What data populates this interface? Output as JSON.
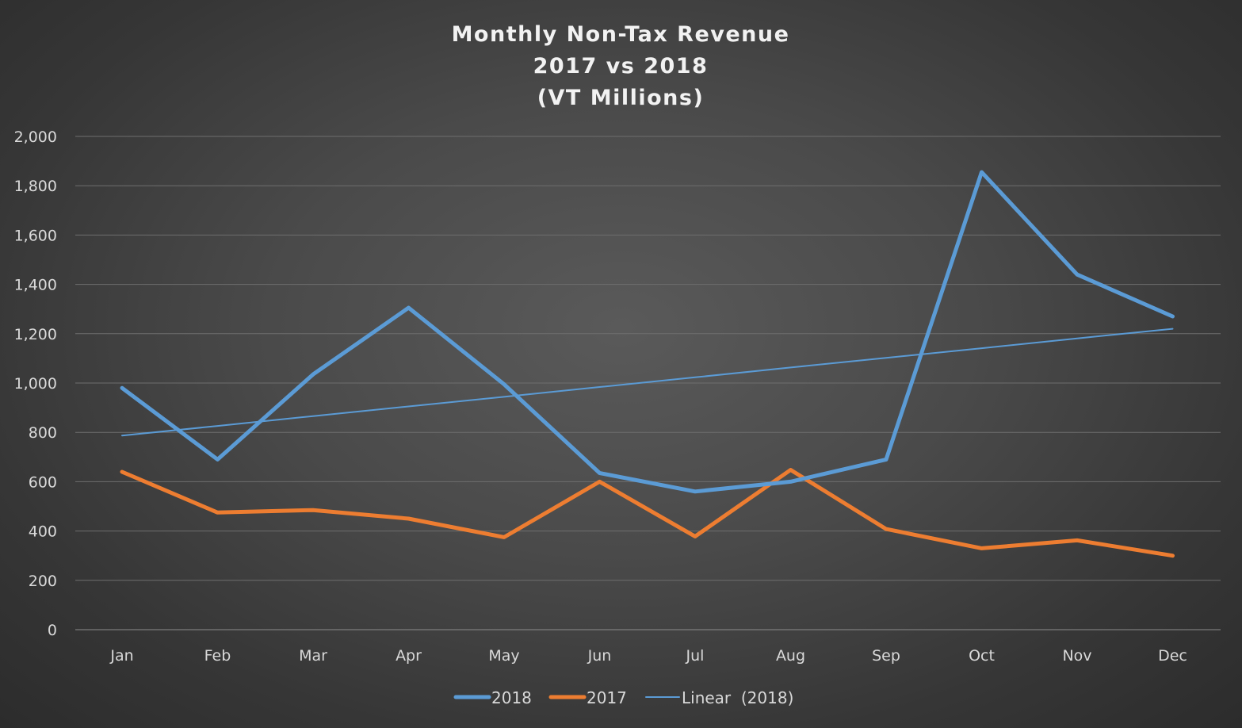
{
  "title": {
    "line1": "Monthly Non-Tax Revenue",
    "line2": "2017 vs 2018",
    "line3": "(VT Millions)"
  },
  "chart_data": {
    "type": "line",
    "title": "Monthly Non-Tax Revenue 2017 vs 2018 (VT Millions)",
    "categories": [
      "Jan",
      "Feb",
      "Mar",
      "Apr",
      "May",
      "Jun",
      "Jul",
      "Aug",
      "Sep",
      "Oct",
      "Nov",
      "Dec"
    ],
    "ylim": [
      0,
      2000
    ],
    "yticks": [
      0,
      200,
      400,
      600,
      800,
      1000,
      1200,
      1400,
      1600,
      1800,
      2000
    ],
    "ytick_labels": [
      "0",
      "200",
      "400",
      "600",
      "800",
      "1,000",
      "1,200",
      "1,400",
      "1,600",
      "1,800",
      "2,000"
    ],
    "grid": "horizontal",
    "legend_position": "bottom",
    "series": [
      {
        "name": "2018",
        "color": "#5b9bd5",
        "style": "thick",
        "values": [
          980,
          690,
          1035,
          1305,
          995,
          635,
          560,
          600,
          690,
          1855,
          1440,
          1270
        ]
      },
      {
        "name": "2017",
        "color": "#ed7d31",
        "style": "thick",
        "values": [
          640,
          475,
          485,
          450,
          375,
          600,
          378,
          648,
          408,
          330,
          362,
          300
        ]
      },
      {
        "name": "Linear  (2018)",
        "color": "#5b9bd5",
        "style": "thin",
        "trendline_of": "2018",
        "values": [
          787,
          826,
          866,
          905,
          944,
          984,
          1023,
          1063,
          1102,
          1141,
          1181,
          1220
        ]
      }
    ]
  }
}
